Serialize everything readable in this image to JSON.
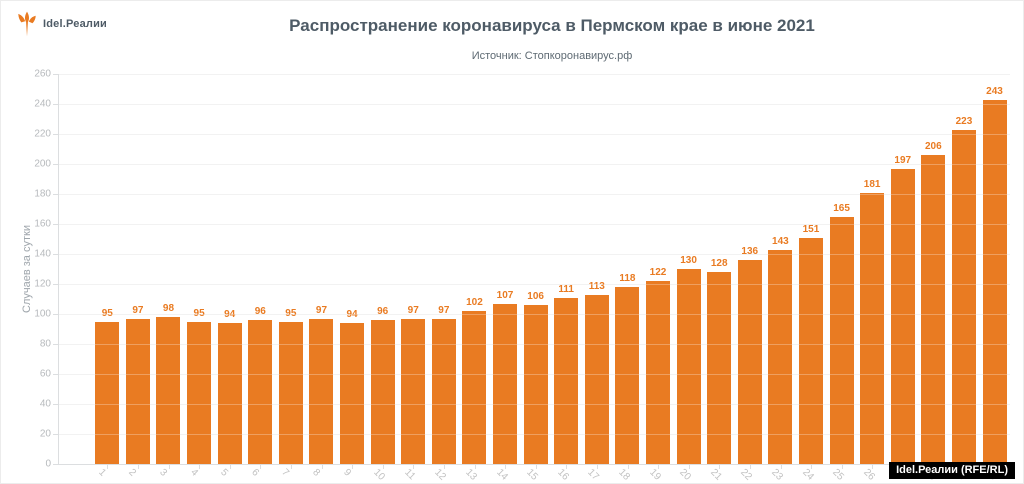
{
  "logo": {
    "text": "Idel.Реалии"
  },
  "watermark": {
    "text": "Idel.Реалии (RFE/RL)"
  },
  "colors": {
    "bar": "#E97B22",
    "value_labels": "#E97B22",
    "title": "#4E5B66",
    "grid": "#EDEDED",
    "axis": "#DCDEE0",
    "tick_text": "#B7BABD",
    "badge_bg": "#000000",
    "badge_text": "#FFFFFF"
  },
  "chart_data": {
    "type": "bar",
    "title": "Распространение коронавируса в Пермском крае в июне 2021",
    "subtitle": "Источник: Стопкоронавирус.рф",
    "ylabel": "Случаев за сутки",
    "xlabel": "",
    "categories": [
      "1",
      "2",
      "3",
      "4",
      "5",
      "6",
      "7",
      "8",
      "9",
      "10",
      "11",
      "12",
      "13",
      "14",
      "15",
      "16",
      "17",
      "18",
      "19",
      "20",
      "21",
      "22",
      "23",
      "24",
      "25",
      "26",
      "27",
      "28",
      "29",
      "30"
    ],
    "values": [
      95,
      97,
      98,
      95,
      94,
      96,
      95,
      97,
      94,
      96,
      97,
      97,
      102,
      107,
      106,
      111,
      113,
      118,
      122,
      130,
      128,
      136,
      143,
      151,
      165,
      181,
      197,
      206,
      223,
      243
    ],
    "ylim": [
      0,
      260
    ],
    "ytick_step": 20,
    "grid": true,
    "legend_position": "none",
    "value_labels_shown": true
  }
}
